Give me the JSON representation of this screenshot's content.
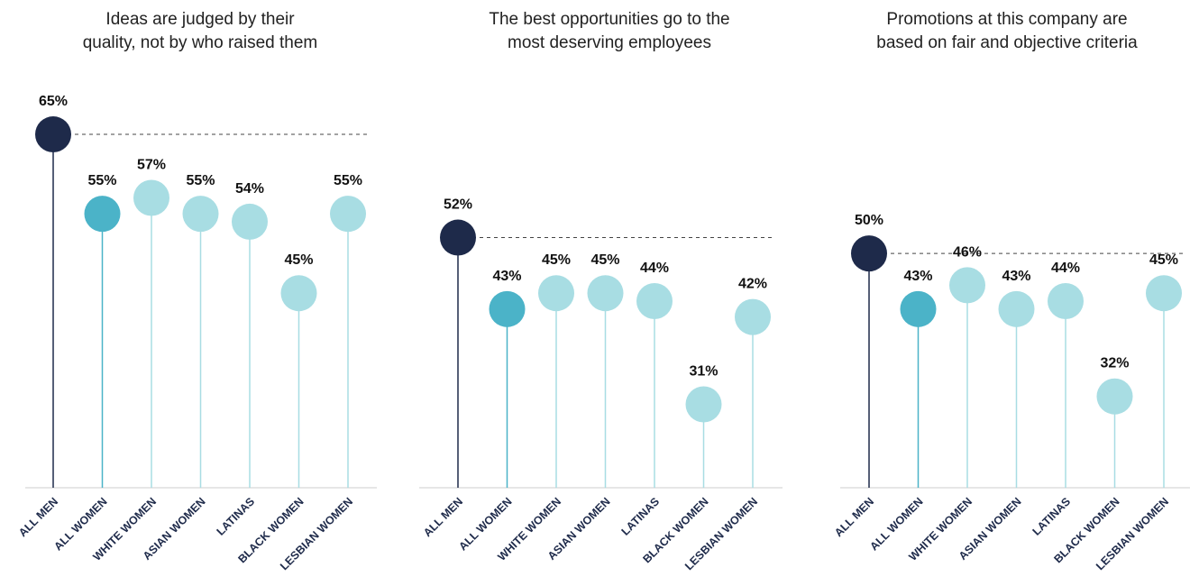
{
  "chart_data": [
    {
      "type": "lollipop",
      "title": [
        "Ideas are judged by their",
        "quality, not by who raised them"
      ],
      "categories": [
        "ALL MEN",
        "ALL WOMEN",
        "WHITE WOMEN",
        "ASIAN WOMEN",
        "LATINAS",
        "BLACK WOMEN",
        "LESBIAN WOMEN"
      ],
      "values": [
        65,
        55,
        57,
        55,
        54,
        45,
        55
      ],
      "value_labels": [
        "65%",
        "55%",
        "57%",
        "55%",
        "54%",
        "45%",
        "55%"
      ],
      "colors": [
        "#1e2a4a",
        "#4bb3c8",
        "#a8dde3",
        "#a8dde3",
        "#a8dde3",
        "#a8dde3",
        "#a8dde3"
      ],
      "ylim": [
        20.5,
        70
      ]
    },
    {
      "type": "lollipop",
      "title": [
        "The best opportunities go to the",
        "most deserving employees"
      ],
      "categories": [
        "ALL MEN",
        "ALL WOMEN",
        "WHITE WOMEN",
        "ASIAN WOMEN",
        "LATINAS",
        "BLACK WOMEN",
        "LESBIAN WOMEN"
      ],
      "values": [
        52,
        43,
        45,
        45,
        44,
        31,
        42
      ],
      "value_labels": [
        "52%",
        "43%",
        "45%",
        "45%",
        "44%",
        "31%",
        "42%"
      ],
      "colors": [
        "#1e2a4a",
        "#4bb3c8",
        "#a8dde3",
        "#a8dde3",
        "#a8dde3",
        "#a8dde3",
        "#a8dde3"
      ],
      "ylim": [
        20.5,
        70
      ]
    },
    {
      "type": "lollipop",
      "title": [
        "Promotions at this company are",
        "based on fair and objective criteria"
      ],
      "categories": [
        "ALL MEN",
        "ALL WOMEN",
        "WHITE WOMEN",
        "ASIAN WOMEN",
        "LATINAS",
        "BLACK WOMEN",
        "LESBIAN WOMEN"
      ],
      "values": [
        50,
        43,
        46,
        43,
        44,
        32,
        45
      ],
      "value_labels": [
        "50%",
        "43%",
        "46%",
        "43%",
        "44%",
        "32%",
        "45%"
      ],
      "colors": [
        "#1e2a4a",
        "#4bb3c8",
        "#a8dde3",
        "#a8dde3",
        "#a8dde3",
        "#a8dde3",
        "#a8dde3"
      ],
      "ylim": [
        20.5,
        70
      ]
    }
  ]
}
